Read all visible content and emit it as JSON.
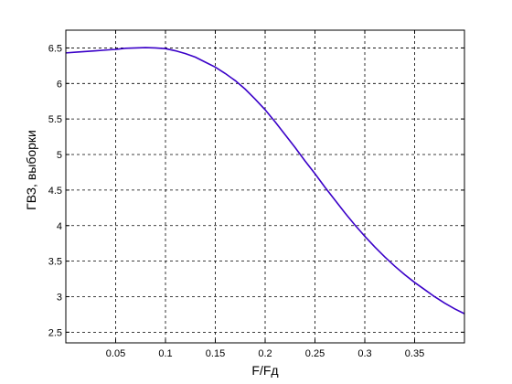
{
  "chart_data": {
    "type": "line",
    "xlabel": "F/Fд",
    "ylabel": "ГВЗ, выборки",
    "xlim": [
      0,
      0.4
    ],
    "ylim": [
      2.35,
      6.75
    ],
    "xticks": [
      0.05,
      0.1,
      0.15,
      0.2,
      0.25,
      0.3,
      0.35
    ],
    "xtick_labels": [
      "0.05",
      "0.1",
      "0.15",
      "0.2",
      "0.25",
      "0.3",
      "0.35"
    ],
    "yticks": [
      2.5,
      3,
      3.5,
      4,
      4.5,
      5,
      5.5,
      6,
      6.5
    ],
    "ytick_labels": [
      "2.5",
      "3",
      "3.5",
      "4",
      "4.5",
      "5",
      "5.5",
      "6",
      "6.5"
    ],
    "grid": true,
    "series": [
      {
        "color": "#3a00c8",
        "x": [
          0,
          0.01,
          0.02,
          0.03,
          0.04,
          0.05,
          0.06,
          0.07,
          0.08,
          0.09,
          0.1,
          0.11,
          0.12,
          0.13,
          0.14,
          0.15,
          0.16,
          0.17,
          0.18,
          0.19,
          0.2,
          0.21,
          0.22,
          0.23,
          0.24,
          0.25,
          0.26,
          0.27,
          0.28,
          0.29,
          0.3,
          0.31,
          0.32,
          0.33,
          0.34,
          0.35,
          0.36,
          0.37,
          0.38,
          0.39,
          0.4
        ],
        "values": [
          6.43,
          6.44,
          6.45,
          6.46,
          6.47,
          6.48,
          6.495,
          6.5,
          6.505,
          6.5,
          6.49,
          6.46,
          6.42,
          6.37,
          6.3,
          6.23,
          6.14,
          6.04,
          5.92,
          5.78,
          5.63,
          5.46,
          5.28,
          5.1,
          4.91,
          4.73,
          4.54,
          4.36,
          4.18,
          4.01,
          3.85,
          3.7,
          3.56,
          3.43,
          3.31,
          3.2,
          3.1,
          3.0,
          2.91,
          2.83,
          2.76
        ]
      }
    ]
  }
}
